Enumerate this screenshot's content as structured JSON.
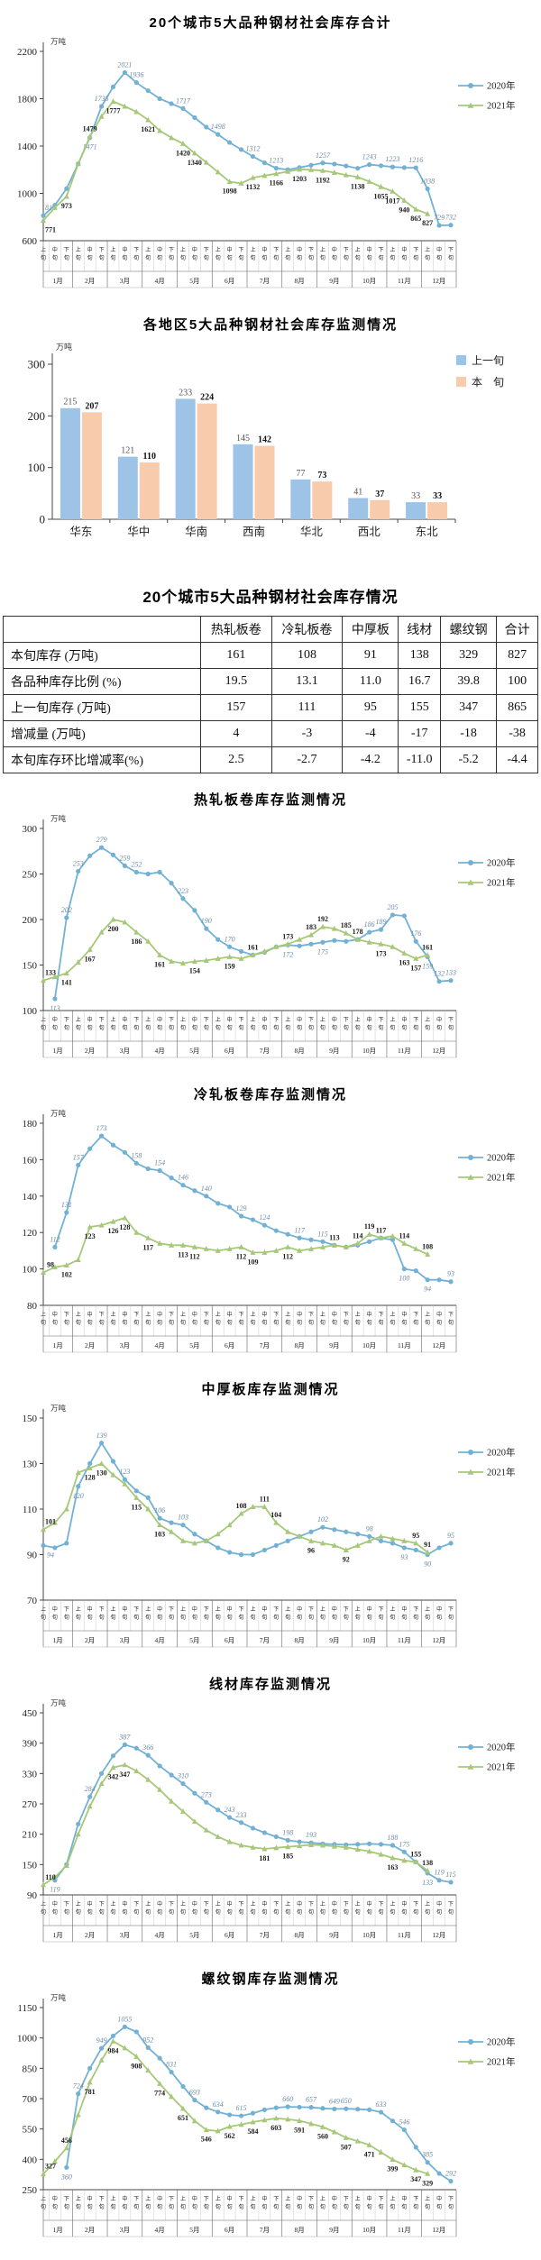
{
  "x_axis": {
    "months": [
      "1月",
      "2月",
      "3月",
      "4月",
      "5月",
      "6月",
      "7月",
      "8月",
      "9月",
      "10月",
      "11月",
      "12月"
    ],
    "periods": [
      "上旬",
      "中旬",
      "下旬"
    ]
  },
  "colors": {
    "line_2020": "#72B1D4",
    "line_2021": "#A6C878",
    "label_2020": "#6e8ca6",
    "label_2021": "#1a1a1a",
    "bar_prev": "#9DC3E6",
    "bar_curr": "#F8CBAD"
  },
  "chart_data": [
    {
      "type": "line",
      "title": "20个城市5大品种钢材社会库存合计",
      "unit": "万吨",
      "ylim": [
        600,
        2200
      ],
      "yticks": [
        600,
        1000,
        1400,
        1800,
        2200
      ],
      "legend_position": "right",
      "series": [
        {
          "name": "2020年",
          "marker": "circle",
          "values": [
            812,
            900,
            1040,
            1250,
            1471,
            1735,
            1900,
            2021,
            1936,
            1868,
            1800,
            1758,
            1717,
            1640,
            1560,
            1498,
            1430,
            1370,
            1312,
            1258,
            1213,
            1200,
            1218,
            1238,
            1257,
            1248,
            1232,
            1212,
            1243,
            1234,
            1223,
            1218,
            1216,
            1038,
            729,
            732
          ],
          "label_idx": [
            0,
            4,
            5,
            7,
            8,
            12,
            15,
            18,
            20,
            24,
            28,
            30,
            32,
            33,
            34,
            35
          ]
        },
        {
          "name": "2021年",
          "marker": "triangle",
          "values": [
            771,
            880,
            973,
            1250,
            1479,
            1650,
            1777,
            1735,
            1690,
            1621,
            1530,
            1470,
            1420,
            1340,
            1262,
            1180,
            1098,
            1085,
            1132,
            1150,
            1166,
            1185,
            1203,
            1200,
            1192,
            1175,
            1155,
            1138,
            1100,
            1055,
            1017,
            940,
            865,
            827,
            null,
            null
          ],
          "label_idx": [
            0,
            2,
            4,
            6,
            9,
            12,
            13,
            16,
            18,
            20,
            22,
            24,
            27,
            29,
            30,
            31,
            32,
            33
          ]
        }
      ]
    },
    {
      "type": "bar",
      "title": "各地区5大品种钢材社会库存监测情况",
      "unit": "万吨",
      "ylim": [
        0,
        300
      ],
      "yticks": [
        0,
        100,
        200,
        300
      ],
      "categories": [
        "华东",
        "华中",
        "华南",
        "西南",
        "华北",
        "西北",
        "东北"
      ],
      "series": [
        {
          "name": "上一旬",
          "values": [
            215,
            121,
            233,
            145,
            77,
            41,
            33
          ]
        },
        {
          "name": "本　旬",
          "values": [
            207,
            110,
            224,
            142,
            73,
            37,
            33
          ]
        }
      ]
    },
    {
      "type": "table",
      "title": "20个城市5大品种钢材社会库存情况",
      "columns": [
        "",
        "热轧板卷",
        "冷轧板卷",
        "中厚板",
        "线材",
        "螺纹钢",
        "合计"
      ],
      "rows": [
        {
          "label": "本旬库存 (万吨)",
          "values": [
            "161",
            "108",
            "91",
            "138",
            "329",
            "827"
          ]
        },
        {
          "label": "各品种库存比例 (%)",
          "values": [
            "19.5",
            "13.1",
            "11.0",
            "16.7",
            "39.8",
            "100"
          ]
        },
        {
          "label": "上一旬库存 (万吨)",
          "values": [
            "157",
            "111",
            "95",
            "155",
            "347",
            "865"
          ]
        },
        {
          "label": "增减量 (万吨)",
          "values": [
            "4",
            "-3",
            "-4",
            "-17",
            "-18",
            "-38"
          ]
        },
        {
          "label": "本旬库存环比增减率(%)",
          "values": [
            "2.5",
            "-2.7",
            "-4.2",
            "-11.0",
            "-5.2",
            "-4.4"
          ]
        }
      ]
    },
    {
      "type": "line",
      "title": "热轧板卷库存监测情况",
      "unit": "万吨",
      "ylim": [
        100,
        300
      ],
      "yticks": [
        100,
        150,
        200,
        250,
        300
      ],
      "series": [
        {
          "name": "2020年",
          "marker": "circle",
          "values": [
            null,
            113,
            202,
            253,
            270,
            279,
            271,
            259,
            252,
            250,
            252,
            240,
            223,
            210,
            190,
            178,
            170,
            165,
            161,
            164,
            170,
            172,
            171,
            173,
            175,
            177,
            176,
            178,
            186,
            189,
            205,
            204,
            176,
            159,
            132,
            133
          ],
          "label_idx": [
            1,
            2,
            3,
            5,
            7,
            8,
            12,
            14,
            16,
            21,
            24,
            28,
            29,
            30,
            32,
            33,
            34,
            35
          ]
        },
        {
          "name": "2021年",
          "marker": "triangle",
          "values": [
            133,
            137,
            141,
            153,
            167,
            186,
            200,
            197,
            186,
            176,
            161,
            154,
            152,
            154,
            155,
            157,
            159,
            157,
            161,
            165,
            170,
            173,
            178,
            183,
            192,
            190,
            185,
            178,
            175,
            173,
            170,
            163,
            157,
            161,
            null,
            null
          ],
          "label_idx": [
            0,
            2,
            4,
            6,
            8,
            10,
            13,
            16,
            18,
            21,
            23,
            24,
            26,
            27,
            29,
            31,
            32,
            33
          ]
        }
      ]
    },
    {
      "type": "line",
      "title": "冷轧板卷库存监测情况",
      "unit": "万吨",
      "ylim": [
        80,
        180
      ],
      "yticks": [
        80,
        100,
        120,
        140,
        160,
        180
      ],
      "series": [
        {
          "name": "2020年",
          "marker": "circle",
          "values": [
            null,
            112,
            131,
            157,
            166,
            173,
            168,
            164,
            158,
            155,
            154,
            150,
            146,
            143,
            140,
            136,
            134,
            129,
            127,
            124,
            121,
            119,
            117,
            116,
            115,
            113,
            112,
            113,
            115,
            117,
            116,
            100,
            99,
            94,
            94,
            93
          ],
          "label_idx": [
            1,
            2,
            3,
            5,
            8,
            10,
            12,
            14,
            17,
            19,
            22,
            24,
            31,
            33,
            35
          ]
        },
        {
          "name": "2021年",
          "marker": "triangle",
          "values": [
            98,
            101,
            102,
            105,
            123,
            124,
            126,
            128,
            120,
            117,
            114,
            113,
            113,
            112,
            111,
            110,
            111,
            112,
            109,
            109,
            110,
            112,
            110,
            111,
            112,
            113,
            112,
            114,
            119,
            117,
            118,
            114,
            111,
            108,
            null,
            null
          ],
          "label_idx": [
            0,
            2,
            4,
            6,
            7,
            9,
            12,
            13,
            17,
            18,
            21,
            25,
            27,
            28,
            29,
            31,
            33
          ]
        }
      ]
    },
    {
      "type": "line",
      "title": "中厚板库存监测情况",
      "unit": "万吨",
      "ylim": [
        70,
        150
      ],
      "yticks": [
        70,
        90,
        110,
        130,
        150
      ],
      "series": [
        {
          "name": "2020年",
          "marker": "circle",
          "values": [
            94,
            93,
            95,
            120,
            130,
            139,
            131,
            123,
            118,
            115,
            106,
            104,
            103,
            99,
            96,
            93,
            91,
            90,
            90,
            92,
            94,
            96,
            98,
            100,
            102,
            101,
            100,
            99,
            98,
            96,
            95,
            93,
            92,
            90,
            93,
            95
          ],
          "label_idx": [
            0,
            3,
            5,
            7,
            10,
            12,
            24,
            28,
            31,
            33,
            35
          ]
        },
        {
          "name": "2021年",
          "marker": "triangle",
          "values": [
            101,
            104,
            110,
            126,
            128,
            130,
            125,
            121,
            115,
            110,
            103,
            100,
            96,
            95,
            96,
            99,
            103,
            108,
            111,
            111,
            104,
            100,
            98,
            96,
            95,
            94,
            92,
            94,
            96,
            98,
            97,
            96,
            95,
            91,
            null,
            null
          ],
          "label_idx": [
            0,
            4,
            5,
            8,
            10,
            17,
            19,
            20,
            23,
            26,
            32,
            33
          ]
        }
      ]
    },
    {
      "type": "line",
      "title": "线材库存监测情况",
      "unit": "万吨",
      "ylim": [
        90,
        450
      ],
      "yticks": [
        90,
        150,
        210,
        270,
        330,
        390,
        450
      ],
      "series": [
        {
          "name": "2020年",
          "marker": "circle",
          "values": [
            null,
            119,
            150,
            230,
            284,
            330,
            365,
            387,
            380,
            366,
            345,
            327,
            310,
            291,
            273,
            258,
            243,
            233,
            222,
            213,
            205,
            198,
            195,
            193,
            191,
            190,
            189,
            190,
            191,
            190,
            188,
            175,
            155,
            133,
            119,
            115
          ],
          "label_idx": [
            1,
            4,
            7,
            9,
            12,
            14,
            16,
            17,
            21,
            23,
            30,
            31,
            32,
            33,
            34,
            35
          ]
        },
        {
          "name": "2021年",
          "marker": "triangle",
          "values": [
            110,
            125,
            148,
            210,
            265,
            310,
            342,
            347,
            335,
            318,
            298,
            275,
            255,
            235,
            218,
            205,
            195,
            188,
            184,
            181,
            183,
            185,
            187,
            189,
            188,
            186,
            184,
            180,
            176,
            170,
            163,
            158,
            155,
            138,
            null,
            null
          ],
          "label_idx": [
            0,
            6,
            7,
            19,
            21,
            30,
            32,
            33
          ]
        }
      ]
    },
    {
      "type": "line",
      "title": "螺纹钢库存监测情况",
      "unit": "万吨",
      "ylim": [
        250,
        1150
      ],
      "yticks": [
        250,
        400,
        550,
        700,
        850,
        1000,
        1150
      ],
      "series": [
        {
          "name": "2020年",
          "marker": "circle",
          "values": [
            null,
            null,
            360,
            724,
            850,
            949,
            1010,
            1055,
            1030,
            952,
            900,
            831,
            760,
            693,
            655,
            634,
            620,
            615,
            628,
            645,
            655,
            660,
            658,
            657,
            652,
            649,
            650,
            648,
            645,
            633,
            590,
            546,
            460,
            385,
            330,
            292
          ],
          "label_idx": [
            2,
            3,
            5,
            7,
            9,
            11,
            13,
            15,
            17,
            21,
            23,
            25,
            26,
            29,
            31,
            33,
            35
          ]
        },
        {
          "name": "2021年",
          "marker": "triangle",
          "values": [
            327,
            390,
            456,
            620,
            781,
            890,
            984,
            950,
            908,
            840,
            774,
            710,
            651,
            590,
            546,
            540,
            562,
            572,
            584,
            594,
            603,
            598,
            591,
            576,
            560,
            535,
            507,
            490,
            471,
            435,
            399,
            372,
            347,
            329,
            null,
            null
          ],
          "label_idx": [
            0,
            2,
            4,
            6,
            8,
            10,
            12,
            14,
            16,
            18,
            20,
            22,
            24,
            26,
            28,
            30,
            32,
            33
          ]
        }
      ]
    }
  ]
}
